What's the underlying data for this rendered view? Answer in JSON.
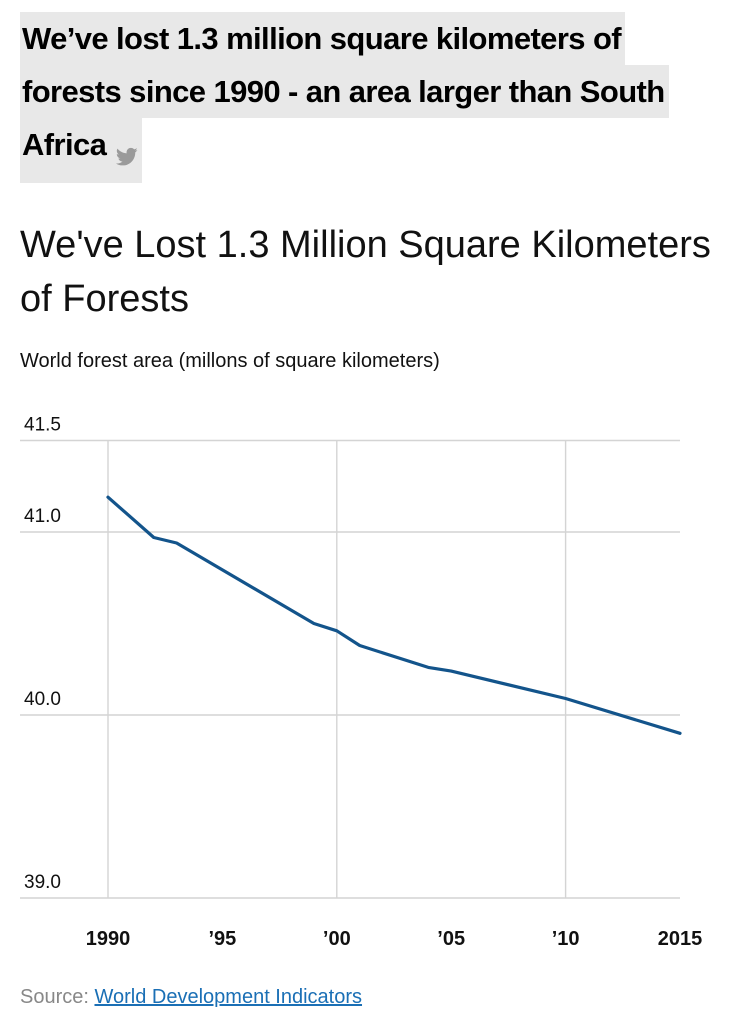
{
  "headline": {
    "lines": [
      "We’ve lost 1.3 million square kilometers of",
      "forests since 1990 - an area larger than South",
      "Africa"
    ],
    "share_icon": "twitter-bird-icon"
  },
  "chart_data": {
    "type": "line",
    "title": "We've Lost 1.3 Million Square Kilometers of Forests",
    "subtitle": "World forest area (millons of square kilometers)",
    "xlabel": "",
    "ylabel": "",
    "x": [
      1990,
      1992,
      1993,
      1999,
      2000,
      2001,
      2004,
      2005,
      2010,
      2015
    ],
    "series": [
      {
        "name": "World forest area",
        "values": [
          41.19,
          40.97,
          40.94,
          40.5,
          40.46,
          40.38,
          40.26,
          40.24,
          40.09,
          39.9
        ]
      }
    ],
    "xlim": [
      1990,
      2015
    ],
    "ylim": [
      39.0,
      41.5
    ],
    "y_ticks": [
      39.0,
      40.0,
      41.0,
      41.5
    ],
    "y_tick_labels": [
      "39.0",
      "40.0",
      "41.0",
      "41.5"
    ],
    "x_ticks": [
      1990,
      1995,
      2000,
      2005,
      2010,
      2015
    ],
    "x_tick_labels": [
      "1990",
      "’95",
      "’00",
      "’05",
      "’10",
      "2015"
    ],
    "line_color": "#13548b",
    "grid": true
  },
  "source": {
    "prefix": "Source: ",
    "link_text": "World Development Indicators"
  },
  "colors": {
    "headline_bg": "#e8e8e8",
    "grid": "#d4d4d4",
    "link": "#1a6fb5"
  }
}
